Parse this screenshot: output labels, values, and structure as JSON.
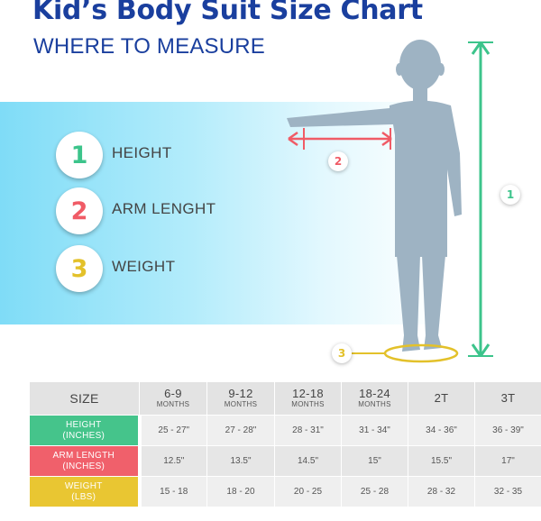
{
  "header": {
    "title": "Kid’s Body Suit Size Chart",
    "subtitle": "WHERE TO MEASURE"
  },
  "legend": [
    {
      "num": "1",
      "label": "HEIGHT",
      "color": "#3cc48b"
    },
    {
      "num": "2",
      "label": "ARM LENGHT",
      "color": "#f05b66"
    },
    {
      "num": "3",
      "label": "WEIGHT",
      "color": "#e3c12a"
    }
  ],
  "figure": {
    "height_marker": "1",
    "arm_marker": "2",
    "weight_marker": "3",
    "silhouette_color": "#9eb3c3"
  },
  "table": {
    "columns": [
      {
        "label": "SIZE",
        "sub": ""
      },
      {
        "label": "6-9",
        "sub": "MONTHS"
      },
      {
        "label": "9-12",
        "sub": "MONTHS"
      },
      {
        "label": "12-18",
        "sub": "MONTHS"
      },
      {
        "label": "18-24",
        "sub": "MONTHS"
      },
      {
        "label": "2T",
        "sub": ""
      },
      {
        "label": "3T",
        "sub": ""
      }
    ],
    "rows": [
      {
        "label": "HEIGHT",
        "unit": "(INCHES)",
        "color": "#45c48b",
        "values": [
          "25 - 27\"",
          "27 - 28\"",
          "28 - 31\"",
          "31 - 34\"",
          "34 - 36\"",
          "36 - 39\""
        ]
      },
      {
        "label": "ARM LENGTH",
        "unit": "(INCHES)",
        "color": "#f0606b",
        "values": [
          "12.5\"",
          "13.5\"",
          "14.5\"",
          "15\"",
          "15.5\"",
          "17\""
        ]
      },
      {
        "label": "WEIGHT",
        "unit": "(LBS)",
        "color": "#e9c632",
        "values": [
          "15 - 18",
          "18 - 20",
          "20 - 25",
          "25 - 28",
          "28 - 32",
          "32 - 35"
        ]
      }
    ]
  }
}
